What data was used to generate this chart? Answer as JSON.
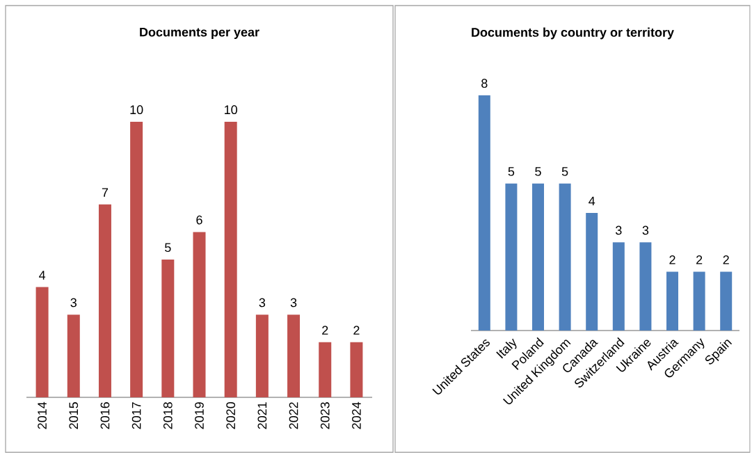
{
  "chart_data": [
    {
      "type": "bar",
      "title": "Documents per year",
      "categories": [
        "2014",
        "2015",
        "2016",
        "2017",
        "2018",
        "2019",
        "2020",
        "2021",
        "2022",
        "2023",
        "2024"
      ],
      "values": [
        4,
        3,
        7,
        10,
        5,
        6,
        10,
        3,
        3,
        2,
        2
      ],
      "color": "#c0504d",
      "data_labels": true
    },
    {
      "type": "bar",
      "title": "Documents by country or territory",
      "categories": [
        "United States",
        "Italy",
        "Poland",
        "United Kingdom",
        "Canada",
        "Switzerland",
        "Ukraine",
        "Austria",
        "Germany",
        "Spain"
      ],
      "values": [
        8,
        5,
        5,
        5,
        4,
        3,
        3,
        2,
        2,
        2
      ],
      "color": "#4f81bd",
      "data_labels": true
    }
  ]
}
